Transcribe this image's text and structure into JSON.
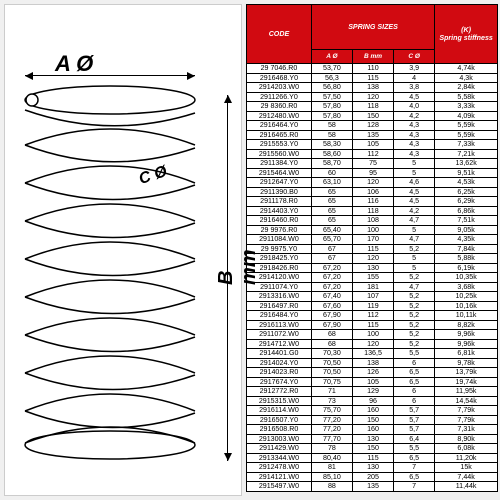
{
  "diagram": {
    "labelA": "A Ø",
    "labelB": "B mm",
    "labelC": "C Ø"
  },
  "table": {
    "headers": {
      "code": "CODE",
      "sizes": "SPRING SIZES",
      "k": "(K)",
      "k2": "Spring stiffness",
      "a": "A Ø",
      "b": "B mm",
      "c": "C Ø"
    },
    "rows": [
      [
        "29 7046.R0",
        "53,70",
        "110",
        "3,9",
        "4,74k"
      ],
      [
        "2916468.Y0",
        "56,3",
        "115",
        "4",
        "4,3k"
      ],
      [
        "2914203.W0",
        "56,80",
        "138",
        "3,8",
        "2,84k"
      ],
      [
        "2911266.Y0",
        "57,50",
        "120",
        "4,5",
        "5,58k"
      ],
      [
        "29 8360.R0",
        "57,80",
        "118",
        "4,0",
        "3,33k"
      ],
      [
        "2912480.W0",
        "57,80",
        "150",
        "4,2",
        "4,09k"
      ],
      [
        "2916464.Y0",
        "58",
        "128",
        "4,3",
        "5,59k"
      ],
      [
        "2916465.R0",
        "58",
        "135",
        "4,3",
        "5,59k"
      ],
      [
        "2915553.Y0",
        "58,30",
        "105",
        "4,3",
        "7,33k"
      ],
      [
        "2915560.W0",
        "58,60",
        "112",
        "4,3",
        "7,21k"
      ],
      [
        "2911384.Y0",
        "58,70",
        "75",
        "5",
        "13,62k"
      ],
      [
        "2915464.W0",
        "60",
        "95",
        "5",
        "9,51k"
      ],
      [
        "2912647.Y0",
        "63,10",
        "120",
        "4,6",
        "4,53k"
      ],
      [
        "2911390.B0",
        "65",
        "106",
        "4,5",
        "6,25k"
      ],
      [
        "2911178.R0",
        "65",
        "116",
        "4,5",
        "6,29k"
      ],
      [
        "2914403.Y0",
        "65",
        "118",
        "4,2",
        "6,86k"
      ],
      [
        "2916460.R0",
        "65",
        "108",
        "4,7",
        "7,51k"
      ],
      [
        "29 9976.R0",
        "65,40",
        "100",
        "5",
        "9,05k"
      ],
      [
        "2911084.W0",
        "65,70",
        "170",
        "4,7",
        "4,35k"
      ],
      [
        "29 9975.Y0",
        "67",
        "115",
        "5,2",
        "7,84k"
      ],
      [
        "2918425.Y0",
        "67",
        "120",
        "5",
        "5,88k"
      ],
      [
        "2918426.R0",
        "67,20",
        "130",
        "5",
        "6,19k"
      ],
      [
        "2914120.W0",
        "67,20",
        "155",
        "5,2",
        "10,35k"
      ],
      [
        "2911074.Y0",
        "67,20",
        "181",
        "4,7",
        "3,68k"
      ],
      [
        "2913316.W0",
        "67,40",
        "107",
        "5,2",
        "10,25k"
      ],
      [
        "2916497.R0",
        "67,60",
        "119",
        "5,2",
        "10,16k"
      ],
      [
        "2916484.Y0",
        "67,90",
        "112",
        "5,2",
        "10,11k"
      ],
      [
        "2916113.W0",
        "67,90",
        "115",
        "5,2",
        "8,82k"
      ],
      [
        "2911072.W0",
        "68",
        "100",
        "5,2",
        "9,96k"
      ],
      [
        "2914712.W0",
        "68",
        "120",
        "5,2",
        "9,96k"
      ],
      [
        "2914401.G0",
        "70,30",
        "136,5",
        "5,5",
        "6,81k"
      ],
      [
        "2914024.Y0",
        "70,50",
        "138",
        "6",
        "9,78k"
      ],
      [
        "2914023.R0",
        "70,50",
        "126",
        "6,5",
        "13,79k"
      ],
      [
        "2917674.Y0",
        "70,75",
        "105",
        "6,5",
        "19,74k"
      ],
      [
        "2912772.R0",
        "71",
        "129",
        "6",
        "11,95k"
      ],
      [
        "2915315.W0",
        "73",
        "96",
        "6",
        "14,54k"
      ],
      [
        "2916114.W0",
        "75,70",
        "160",
        "5,7",
        "7,79k"
      ],
      [
        "2916507.Y0",
        "77,20",
        "150",
        "5,7",
        "7,79k"
      ],
      [
        "2916508.R0",
        "77,20",
        "160",
        "5,7",
        "7,31k"
      ],
      [
        "2913003.W0",
        "77,70",
        "130",
        "6,4",
        "8,90k"
      ],
      [
        "2911429.W0",
        "78",
        "150",
        "5,5",
        "6,08k"
      ],
      [
        "2913344.W0",
        "80,40",
        "115",
        "6,5",
        "11,20k"
      ],
      [
        "2912478.W0",
        "81",
        "130",
        "7",
        "15k"
      ],
      [
        "2914121.W0",
        "85,10",
        "205",
        "6,5",
        "7,44k"
      ],
      [
        "2915497.W0",
        "88",
        "135",
        "7",
        "11,44k"
      ]
    ]
  },
  "colors": {
    "header_bg": "#d10a11",
    "header_fg": "#ffffff",
    "row_bg": "#ffffff",
    "border": "#000000"
  }
}
